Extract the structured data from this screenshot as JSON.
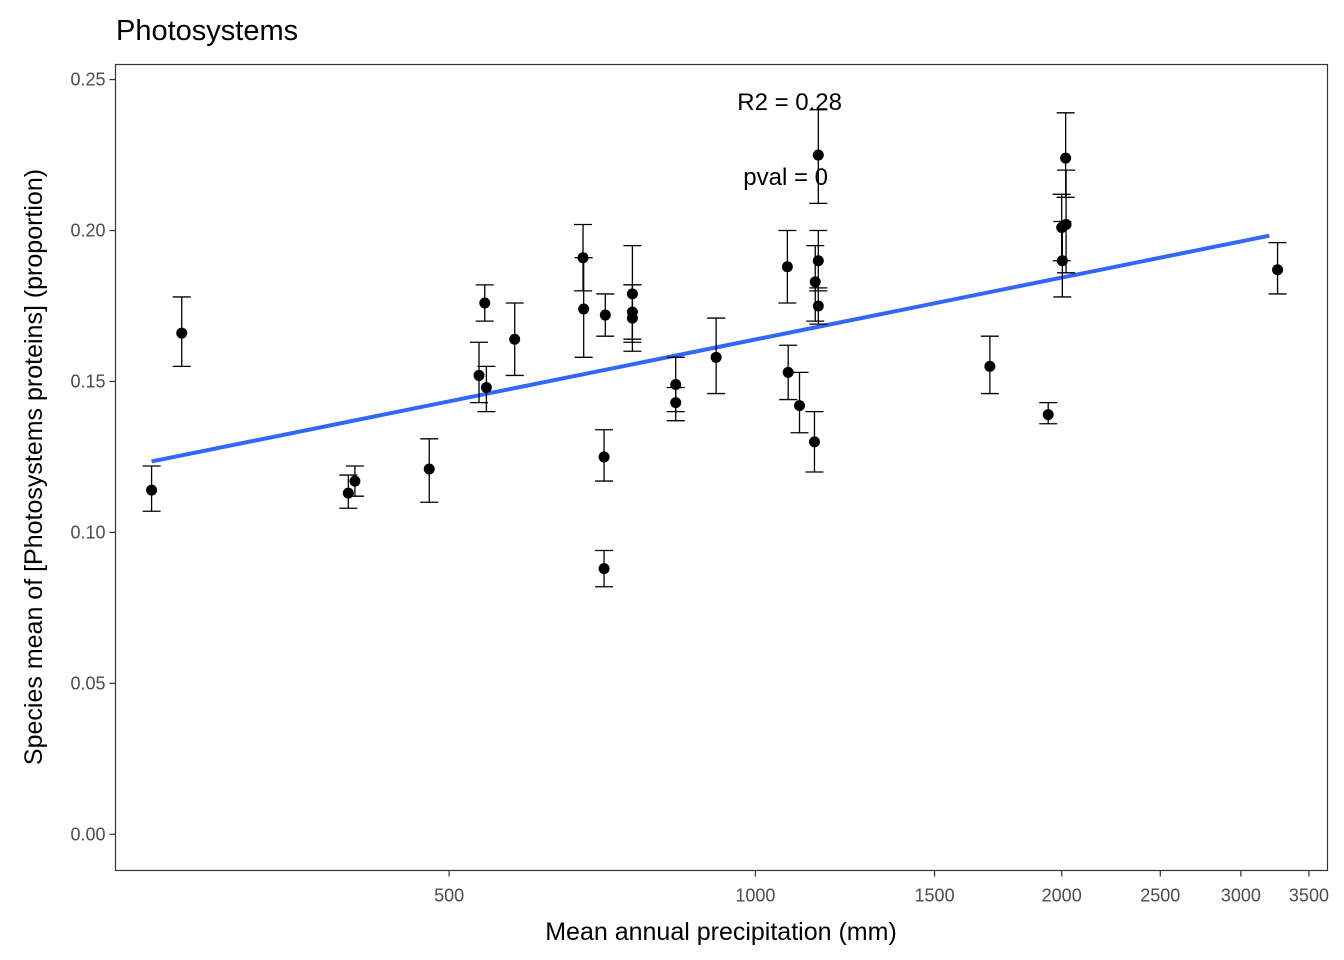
{
  "chart_data": {
    "type": "scatter",
    "title": "Photosystems",
    "xlabel": "Mean annual precipitation (mm)",
    "ylabel": "Species mean of [Photosystems proteins] (proportion)",
    "x_scale": "log",
    "xlim": [
      235,
      3650
    ],
    "ylim": [
      -0.012,
      0.255
    ],
    "x_ticks": [
      500,
      1000,
      1500,
      2000,
      2500,
      3000,
      3500
    ],
    "y_ticks": [
      0.0,
      0.05,
      0.1,
      0.15,
      0.2,
      0.25
    ],
    "y_tick_labels": [
      "0.00",
      "0.05",
      "0.10",
      "0.15",
      "0.20",
      "0.25"
    ],
    "grid": false,
    "annotations": [
      "R2 = 0.28",
      "pval = 0"
    ],
    "colors": {
      "points": "#000000",
      "fit_line": "#3366ff",
      "axis": "#333333"
    },
    "points": [
      {
        "x": 255,
        "y": 0.114,
        "lo": 0.107,
        "hi": 0.122
      },
      {
        "x": 273,
        "y": 0.166,
        "lo": 0.155,
        "hi": 0.178
      },
      {
        "x": 398,
        "y": 0.113,
        "lo": 0.108,
        "hi": 0.119
      },
      {
        "x": 404,
        "y": 0.117,
        "lo": 0.112,
        "hi": 0.122
      },
      {
        "x": 478,
        "y": 0.121,
        "lo": 0.11,
        "hi": 0.131
      },
      {
        "x": 535,
        "y": 0.152,
        "lo": 0.143,
        "hi": 0.163
      },
      {
        "x": 542,
        "y": 0.176,
        "lo": 0.17,
        "hi": 0.182
      },
      {
        "x": 544,
        "y": 0.148,
        "lo": 0.14,
        "hi": 0.155
      },
      {
        "x": 580,
        "y": 0.164,
        "lo": 0.152,
        "hi": 0.176
      },
      {
        "x": 677,
        "y": 0.191,
        "lo": 0.18,
        "hi": 0.202
      },
      {
        "x": 678,
        "y": 0.174,
        "lo": 0.158,
        "hi": 0.191
      },
      {
        "x": 712,
        "y": 0.172,
        "lo": 0.165,
        "hi": 0.179
      },
      {
        "x": 710,
        "y": 0.125,
        "lo": 0.117,
        "hi": 0.134
      },
      {
        "x": 710,
        "y": 0.088,
        "lo": 0.082,
        "hi": 0.094
      },
      {
        "x": 757,
        "y": 0.179,
        "lo": 0.163,
        "hi": 0.195
      },
      {
        "x": 757,
        "y": 0.173,
        "lo": 0.164,
        "hi": 0.182
      },
      {
        "x": 757,
        "y": 0.171,
        "lo": 0.16,
        "hi": 0.182
      },
      {
        "x": 835,
        "y": 0.149,
        "lo": 0.14,
        "hi": 0.158
      },
      {
        "x": 835,
        "y": 0.143,
        "lo": 0.137,
        "hi": 0.148
      },
      {
        "x": 915,
        "y": 0.158,
        "lo": 0.146,
        "hi": 0.171
      },
      {
        "x": 1075,
        "y": 0.188,
        "lo": 0.176,
        "hi": 0.2
      },
      {
        "x": 1077,
        "y": 0.153,
        "lo": 0.144,
        "hi": 0.162
      },
      {
        "x": 1105,
        "y": 0.142,
        "lo": 0.133,
        "hi": 0.153
      },
      {
        "x": 1143,
        "y": 0.13,
        "lo": 0.12,
        "hi": 0.14
      },
      {
        "x": 1145,
        "y": 0.183,
        "lo": 0.17,
        "hi": 0.195
      },
      {
        "x": 1153,
        "y": 0.225,
        "lo": 0.209,
        "hi": 0.24
      },
      {
        "x": 1153,
        "y": 0.19,
        "lo": 0.18,
        "hi": 0.2
      },
      {
        "x": 1153,
        "y": 0.175,
        "lo": 0.169,
        "hi": 0.181
      },
      {
        "x": 1700,
        "y": 0.155,
        "lo": 0.146,
        "hi": 0.165
      },
      {
        "x": 1940,
        "y": 0.139,
        "lo": 0.136,
        "hi": 0.143
      },
      {
        "x": 2000,
        "y": 0.201,
        "lo": 0.19,
        "hi": 0.212
      },
      {
        "x": 2003,
        "y": 0.19,
        "lo": 0.178,
        "hi": 0.203
      },
      {
        "x": 2018,
        "y": 0.224,
        "lo": 0.211,
        "hi": 0.239
      },
      {
        "x": 2020,
        "y": 0.202,
        "lo": 0.186,
        "hi": 0.22
      },
      {
        "x": 3260,
        "y": 0.187,
        "lo": 0.179,
        "hi": 0.196
      }
    ],
    "fit_line": {
      "x": [
        255,
        3200
      ],
      "y": [
        0.1235,
        0.1983
      ]
    }
  }
}
